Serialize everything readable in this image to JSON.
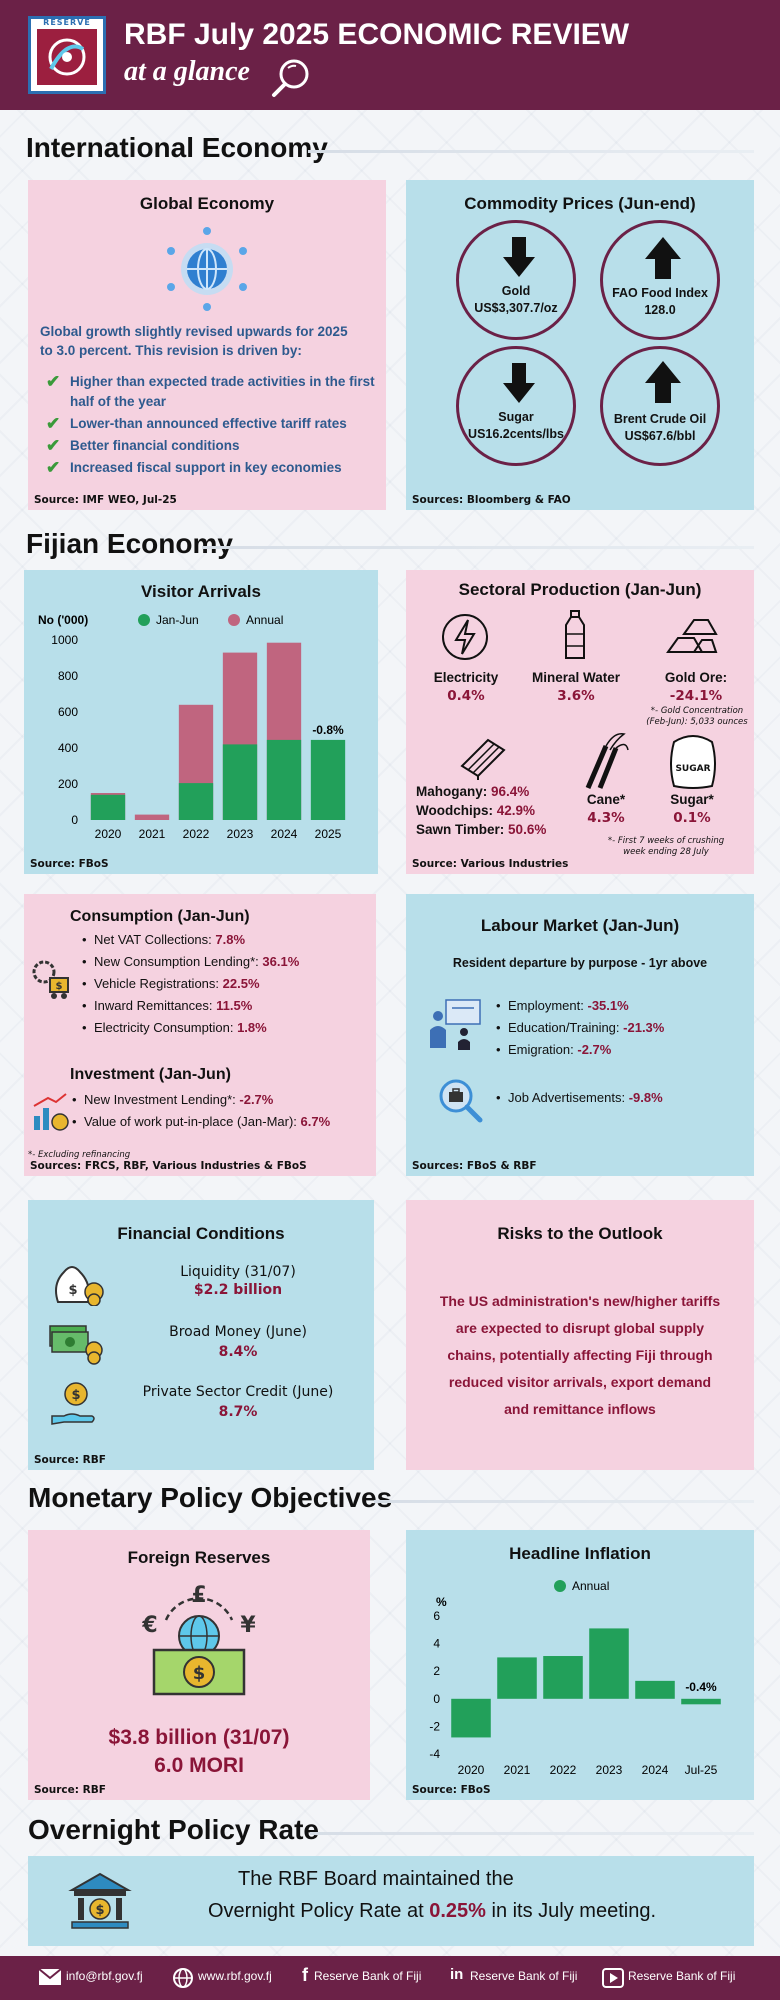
{
  "header": {
    "logo_text": "RESERVE",
    "title": "RBF July 2025 ECONOMIC REVIEW",
    "subtitle": "at a glance"
  },
  "international": {
    "section_title": "International Economy",
    "global": {
      "title": "Global Economy",
      "intro_line1": "Global growth slightly revised upwards for 2025",
      "intro_line2": "to 3.0 percent.  This revision is driven by:",
      "points": [
        {
          "l1": "Higher than expected trade activities in the first",
          "l2": "half of the year"
        },
        {
          "l1": "Lower-than announced effective tariff rates",
          "l2": ""
        },
        {
          "l1": "Better financial conditions",
          "l2": ""
        },
        {
          "l1": "Increased fiscal support in key economies",
          "l2": ""
        }
      ],
      "source": "Source:  IMF WEO, Jul-25"
    },
    "commodity": {
      "title": "Commodity Prices (Jun-end)",
      "items": [
        {
          "name": "Gold",
          "value": "US$3,307.7/oz",
          "direction": "down"
        },
        {
          "name": "FAO Food Index",
          "value": "128.0",
          "direction": "up"
        },
        {
          "name": "Sugar",
          "value": "US16.2cents/lbs",
          "direction": "down"
        },
        {
          "name": "Brent Crude Oil",
          "value": "US$67.6/bbl",
          "direction": "up"
        }
      ],
      "source": "Sources: Bloomberg & FAO"
    }
  },
  "fijian": {
    "section_title": "Fijian Economy",
    "visitor": {
      "title": "Visitor Arrivals",
      "source": "Source: FBoS"
    },
    "sectoral": {
      "title": "Sectoral Production (Jan-Jun)",
      "electricity": {
        "label": "Electricity",
        "value": "0.4%"
      },
      "water": {
        "label": "Mineral Water",
        "value": "3.6%"
      },
      "gold": {
        "label": "Gold Ore:",
        "value": "-24.1%",
        "note1": "*- Gold Concentration",
        "note2": "(Feb-Jun): 5,033 ounces"
      },
      "timber": [
        {
          "label": "Mahogany:",
          "value": "96.4%"
        },
        {
          "label": "Woodchips:",
          "value": "42.9%"
        },
        {
          "label": "Sawn Timber:",
          "value": "50.6%"
        }
      ],
      "cane": {
        "label": "Cane*",
        "value": "4.3%"
      },
      "sugar": {
        "label": "Sugar*",
        "value": "0.1%",
        "bag_text": "SUGAR"
      },
      "note1": "*- First 7 weeks of crushing",
      "note2": "week ending 28 July",
      "source": "Source: Various Industries"
    },
    "consumption": {
      "title": "Consumption (Jan-Jun)",
      "items": [
        {
          "label": "Net VAT Collections:",
          "value": "7.8%"
        },
        {
          "label": "New Consumption Lending*:",
          "value": "36.1%"
        },
        {
          "label": "Vehicle Registrations:",
          "value": "22.5%"
        },
        {
          "label": "Inward Remittances:",
          "value": "11.5%"
        },
        {
          "label": "Electricity Consumption:",
          "value": "1.8%"
        }
      ],
      "investment_title": "Investment (Jan-Jun)",
      "investment_items": [
        {
          "label": "New Investment Lending*:",
          "value": "-2.7%"
        },
        {
          "label": "Value of work put-in-place (Jan-Mar):",
          "value": "6.7%"
        }
      ],
      "note": "*- Excluding refinancing",
      "source": "Sources: FRCS, RBF, Various Industries & FBoS"
    },
    "labour": {
      "title": "Labour Market (Jan-Jun)",
      "subtitle": "Resident departure by purpose - 1yr above",
      "items": [
        {
          "label": "Employment:",
          "value": "-35.1%"
        },
        {
          "label": "Education/Training:",
          "value": "-21.3%"
        },
        {
          "label": "Emigration:",
          "value": "-2.7%"
        }
      ],
      "job": {
        "label": "Job Advertisements:",
        "value": "-9.8%"
      },
      "source": "Sources: FBoS & RBF"
    },
    "financial": {
      "title": "Financial Conditions",
      "items": [
        {
          "label": "Liquidity (31/07)",
          "value": "$2.2 billion"
        },
        {
          "label": "Broad Money (June)",
          "value": "8.4%"
        },
        {
          "label": "Private Sector Credit (June)",
          "value": "8.7%"
        }
      ],
      "source": "Source: RBF"
    },
    "risks": {
      "title": "Risks to the Outlook",
      "lines": [
        "The US administration's new/higher tariffs",
        "are expected to disrupt global supply",
        "chains, potentially affecting Fiji through",
        "reduced visitor arrivals, export demand",
        "and remittance inflows"
      ]
    }
  },
  "monetary": {
    "section_title": "Monetary Policy Objectives",
    "reserves": {
      "title": "Foreign Reserves",
      "value": "$3.8 billion (31/07)",
      "mori": "6.0 MORI",
      "source": "Source: RBF"
    },
    "inflation": {
      "title": "Headline Inflation",
      "source": "Source: FBoS"
    }
  },
  "opr": {
    "section_title": "Overnight Policy Rate",
    "line1": "The RBF Board maintained the",
    "line2_pre": "Overnight Policy Rate at ",
    "rate": "0.25%",
    "line2_post": " in its July meeting."
  },
  "footer": {
    "email": "info@rbf.gov.fj",
    "web": "www.rbf.gov.fj",
    "facebook": "Reserve Bank of Fiji",
    "linkedin": "Reserve Bank of Fiji",
    "youtube": "Reserve Bank of Fiji"
  },
  "chart_data": [
    {
      "type": "bar",
      "title": "",
      "ylabel": "No ('000)",
      "categories": [
        "2020",
        "2021",
        "2022",
        "2023",
        "2024",
        "2025"
      ],
      "series": [
        {
          "name": "Jan-Jun",
          "values": [
            140,
            0,
            205,
            420,
            445,
            445
          ],
          "color": "#22a05a"
        },
        {
          "name": "Annual",
          "values": [
            150,
            30,
            640,
            930,
            985,
            null
          ],
          "color": "#c0657f"
        }
      ],
      "annotations": [
        {
          "category": "2025",
          "text": "-0.8%"
        }
      ],
      "yticks": [
        "0",
        "200",
        "400",
        "600",
        "800",
        "1000"
      ],
      "ylim": [
        0,
        1000
      ],
      "legend": "top"
    },
    {
      "type": "bar",
      "title": "",
      "ylabel": "%",
      "categories": [
        "2020",
        "2021",
        "2022",
        "2023",
        "2024",
        "Jul-25"
      ],
      "series": [
        {
          "name": "Annual",
          "values": [
            -2.8,
            3.0,
            3.1,
            5.1,
            1.3,
            -0.4
          ],
          "color": "#22a05a"
        }
      ],
      "annotations": [
        {
          "category": "Jul-25",
          "text": "-0.4%"
        }
      ],
      "yticks": [
        "-4",
        "-2",
        "0",
        "2",
        "4",
        "6"
      ],
      "ylim": [
        -4,
        6
      ],
      "legend": "top"
    }
  ]
}
